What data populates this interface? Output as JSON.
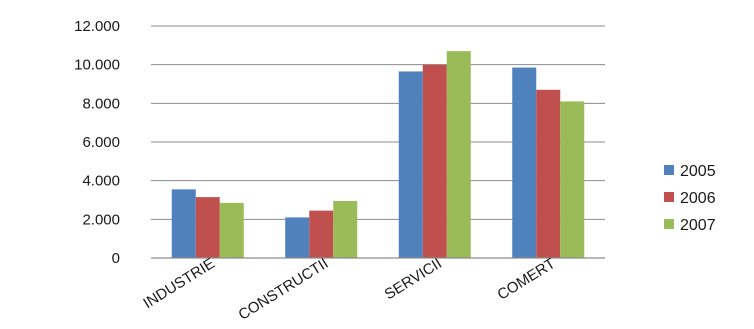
{
  "chart_data": {
    "type": "bar",
    "categories": [
      "INDUSTRIE",
      "CONSTRUCTII",
      "SERVICII",
      "COMERT"
    ],
    "series": [
      {
        "name": "2005",
        "color": "#4f81bd",
        "values": [
          3550,
          2100,
          9650,
          9850
        ]
      },
      {
        "name": "2006",
        "color": "#c0504d",
        "values": [
          3150,
          2450,
          10000,
          8700
        ]
      },
      {
        "name": "2007",
        "color": "#9bbb59",
        "values": [
          2850,
          2950,
          10700,
          8100
        ]
      }
    ],
    "yticks": [
      "0",
      "2.000",
      "4.000",
      "6.000",
      "8.000",
      "10.000",
      "12.000"
    ],
    "ylim": [
      0,
      12000
    ],
    "grid": true,
    "legend_position": "right"
  }
}
